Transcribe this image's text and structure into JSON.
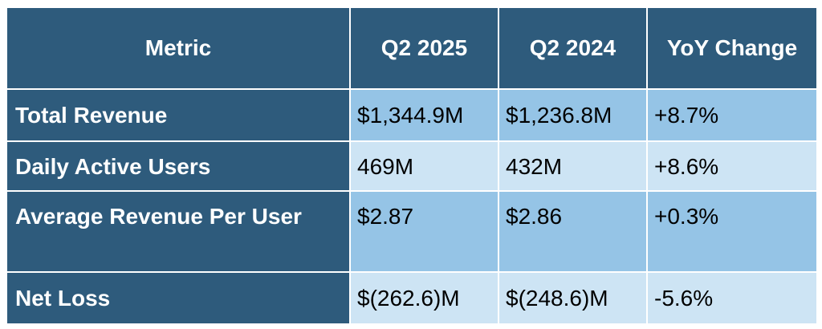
{
  "chart_data": {
    "type": "table",
    "columns": [
      "Metric",
      "Q2 2025",
      "Q2 2024",
      "YoY Change"
    ],
    "rows": [
      {
        "metric": "Total Revenue",
        "q2_2025": "$1,344.9M",
        "q2_2024": "$1,236.8M",
        "yoy": "+8.7%"
      },
      {
        "metric": "Daily Active Users",
        "q2_2025": "469M",
        "q2_2024": "432M",
        "yoy": "+8.6%"
      },
      {
        "metric": "Average Revenue Per User",
        "q2_2025": "$2.87",
        "q2_2024": "$2.86",
        "yoy": "+0.3%"
      },
      {
        "metric": "Net Loss",
        "q2_2025": "$(262.6)M",
        "q2_2024": "$(248.6)M",
        "yoy": "-5.6%"
      }
    ]
  },
  "colors": {
    "header_bg": "#2e5b7c",
    "row_dark_bg": "#95c4e6",
    "row_light_bg": "#cde4f4",
    "header_text": "#ffffff",
    "value_text": "#000000"
  }
}
